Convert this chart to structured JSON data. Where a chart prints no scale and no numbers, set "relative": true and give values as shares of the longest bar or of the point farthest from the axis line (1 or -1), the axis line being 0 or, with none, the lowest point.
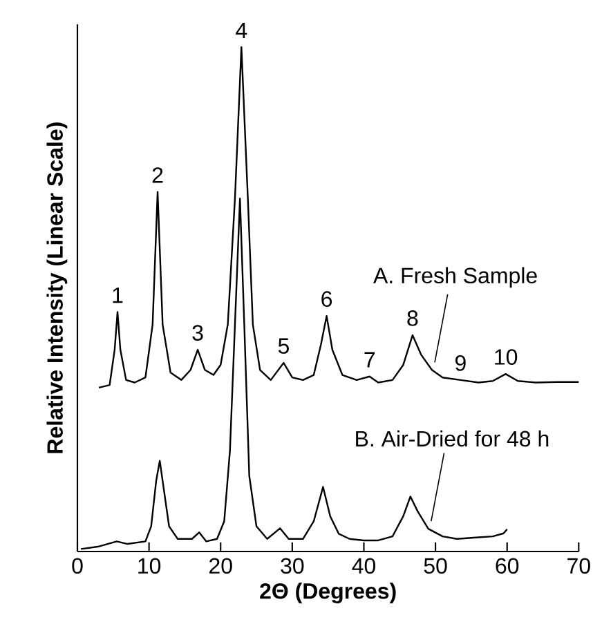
{
  "chart_data": {
    "type": "line",
    "relative": true,
    "xlabel": "2Θ (Degrees)",
    "ylabel": "Relative Intensity (Linear Scale)",
    "xlim": [
      0,
      70
    ],
    "xticks": [
      0,
      10,
      20,
      30,
      40,
      50,
      60,
      70
    ],
    "series": [
      {
        "name": "A. Fresh Sample",
        "color": "#000000",
        "x": [
          3,
          4.5,
          5.2,
          5.6,
          6.0,
          6.8,
          8,
          9.5,
          10.5,
          11.2,
          11.9,
          13,
          14.5,
          15.8,
          16.8,
          17.8,
          19,
          20,
          21,
          22,
          22.9,
          23.8,
          24.5,
          25.5,
          27,
          28.8,
          30,
          31.5,
          33,
          34,
          34.8,
          35.6,
          37,
          39,
          40.8,
          42,
          44,
          45.5,
          46.8,
          48,
          49.5,
          51,
          53.5,
          56,
          58,
          59.8,
          61.5,
          64,
          67,
          70
        ],
        "values": [
          0.325,
          0.33,
          0.4,
          0.475,
          0.4,
          0.34,
          0.335,
          0.345,
          0.45,
          0.713,
          0.45,
          0.355,
          0.34,
          0.36,
          0.4,
          0.36,
          0.35,
          0.37,
          0.45,
          0.7,
          1.0,
          0.7,
          0.45,
          0.36,
          0.34,
          0.374,
          0.345,
          0.34,
          0.35,
          0.41,
          0.467,
          0.4,
          0.35,
          0.34,
          0.347,
          0.335,
          0.34,
          0.37,
          0.429,
          0.39,
          0.36,
          0.345,
          0.34,
          0.335,
          0.338,
          0.352,
          0.338,
          0.335,
          0.336,
          0.336
        ]
      },
      {
        "name": "B. Air-Dried for 48 h",
        "color": "#000000",
        "x": [
          0.5,
          3,
          5.5,
          7,
          9.5,
          10.3,
          11.0,
          11.5,
          12.0,
          12.8,
          14,
          16,
          17,
          18,
          19.5,
          20.5,
          21.3,
          22.0,
          22.7,
          23.3,
          24,
          25,
          26.5,
          28.3,
          29.5,
          31.5,
          33,
          34.3,
          35.3,
          36.5,
          38,
          40,
          42,
          44,
          45.5,
          46.5,
          47.5,
          49,
          51,
          53,
          56,
          58,
          59.5,
          60
        ],
        "values": [
          0.005,
          0.01,
          0.02,
          0.015,
          0.02,
          0.05,
          0.14,
          0.18,
          0.13,
          0.05,
          0.025,
          0.025,
          0.038,
          0.02,
          0.025,
          0.06,
          0.2,
          0.45,
          0.7,
          0.45,
          0.15,
          0.05,
          0.025,
          0.046,
          0.025,
          0.025,
          0.06,
          0.128,
          0.07,
          0.035,
          0.025,
          0.022,
          0.022,
          0.03,
          0.07,
          0.109,
          0.08,
          0.045,
          0.03,
          0.025,
          0.028,
          0.03,
          0.036,
          0.044
        ]
      }
    ],
    "annotations": [
      {
        "text": "1",
        "x": 5.6,
        "y": 0.475
      },
      {
        "text": "2",
        "x": 11.2,
        "y": 0.713
      },
      {
        "text": "3",
        "x": 16.8,
        "y": 0.4
      },
      {
        "text": "4",
        "x": 22.9,
        "y": 1.0
      },
      {
        "text": "5",
        "x": 28.8,
        "y": 0.374
      },
      {
        "text": "6",
        "x": 34.8,
        "y": 0.467
      },
      {
        "text": "7",
        "x": 40.8,
        "y": 0.347
      },
      {
        "text": "8",
        "x": 46.8,
        "y": 0.429
      },
      {
        "text": "9",
        "x": 53.5,
        "y": 0.34
      },
      {
        "text": "10",
        "x": 59.8,
        "y": 0.352
      }
    ]
  }
}
